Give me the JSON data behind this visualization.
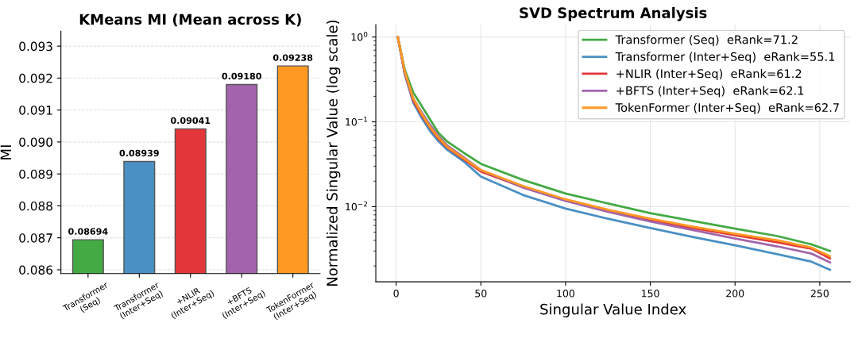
{
  "chart_data": [
    {
      "type": "bar",
      "title": "KMeans MI (Mean across K)",
      "ylabel": "MI",
      "categories": [
        "Transformer\n(Seq)",
        "Transformer\n(Inter+Seq)",
        "+NLIR\n(Inter+Seq)",
        "+BFTS\n(Inter+Seq)",
        "TokenFormer\n(Inter+Seq)"
      ],
      "values": [
        0.08694,
        0.08939,
        0.09041,
        0.0918,
        0.09238
      ],
      "colors": [
        "#44aa44",
        "#4a90c4",
        "#e3363a",
        "#a265ab",
        "#ff9922"
      ],
      "value_labels": [
        "0.08694",
        "0.08939",
        "0.09041",
        "0.09180",
        "0.09238"
      ],
      "ylim": [
        0.08588,
        0.09347
      ],
      "yticks": [
        {
          "value": 0.086,
          "label": "0.086"
        },
        {
          "value": 0.087,
          "label": "0.087"
        },
        {
          "value": 0.088,
          "label": "0.088"
        },
        {
          "value": 0.089,
          "label": "0.089"
        },
        {
          "value": 0.09,
          "label": "0.090"
        },
        {
          "value": 0.091,
          "label": "0.091"
        },
        {
          "value": 0.092,
          "label": "0.092"
        },
        {
          "value": 0.093,
          "label": "0.093"
        }
      ],
      "grid": "y",
      "legend": false
    },
    {
      "type": "line",
      "title": "SVD Spectrum Analysis",
      "xlabel": "Singular Value Index",
      "ylabel": "Normalized Singular Value (log scale)",
      "x": [
        1,
        5,
        10,
        15,
        20,
        25,
        30,
        40,
        50,
        75,
        100,
        125,
        150,
        175,
        200,
        225,
        245,
        256
      ],
      "series": [
        {
          "name": "Transformer (Seq)  eRank=71.2",
          "color": "#44aa44",
          "values": [
            1.0,
            0.42,
            0.223,
            0.155,
            0.107,
            0.074,
            0.059,
            0.043,
            0.032,
            0.0206,
            0.0143,
            0.0109,
            0.0084,
            0.0068,
            0.0055,
            0.0045,
            0.0036,
            0.003
          ]
        },
        {
          "name": "Transformer (Inter+Seq)  eRank=55.1",
          "color": "#4a90c4",
          "values": [
            1.0,
            0.37,
            0.17,
            0.112,
            0.078,
            0.059,
            0.047,
            0.034,
            0.0226,
            0.0137,
            0.0095,
            0.0072,
            0.0056,
            0.0044,
            0.0035,
            0.00275,
            0.00225,
            0.0018
          ]
        },
        {
          "name": "+NLIR (Inter+Seq)  eRank=61.2",
          "color": "#e3363a",
          "values": [
            1.0,
            0.38,
            0.18,
            0.12,
            0.085,
            0.063,
            0.05,
            0.036,
            0.026,
            0.0169,
            0.0119,
            0.0089,
            0.0069,
            0.0056,
            0.0046,
            0.0038,
            0.0032,
            0.00246
          ]
        },
        {
          "name": "+BFTS (Inter+Seq)  eRank=62.1",
          "color": "#a265ab",
          "values": [
            1.0,
            0.38,
            0.19,
            0.13,
            0.092,
            0.068,
            0.053,
            0.038,
            0.027,
            0.0168,
            0.0117,
            0.0087,
            0.0067,
            0.0053,
            0.0042,
            0.0034,
            0.0028,
            0.0022
          ]
        },
        {
          "name": "TokenFormer (Inter+Seq)  eRank=62.7",
          "color": "#ff9922",
          "values": [
            1.0,
            0.4,
            0.19,
            0.125,
            0.087,
            0.065,
            0.051,
            0.037,
            0.027,
            0.0175,
            0.0122,
            0.0092,
            0.0072,
            0.0058,
            0.0048,
            0.004,
            0.0033,
            0.0026
          ]
        }
      ],
      "log": "y",
      "xlim": [
        -12,
        268
      ],
      "xticks": [
        0,
        50,
        100,
        150,
        200,
        250
      ],
      "ylim": [
        0.0013,
        1.4
      ],
      "yticks": [
        {
          "value": 0.01,
          "label": "10$^{−2}$"
        },
        {
          "value": 0.1,
          "label": "10$^{−1}$"
        },
        {
          "value": 1,
          "label": "10$^{0}$"
        }
      ],
      "grid": true,
      "legend": "top right",
      "marker": "none",
      "line_style": "solid"
    }
  ]
}
